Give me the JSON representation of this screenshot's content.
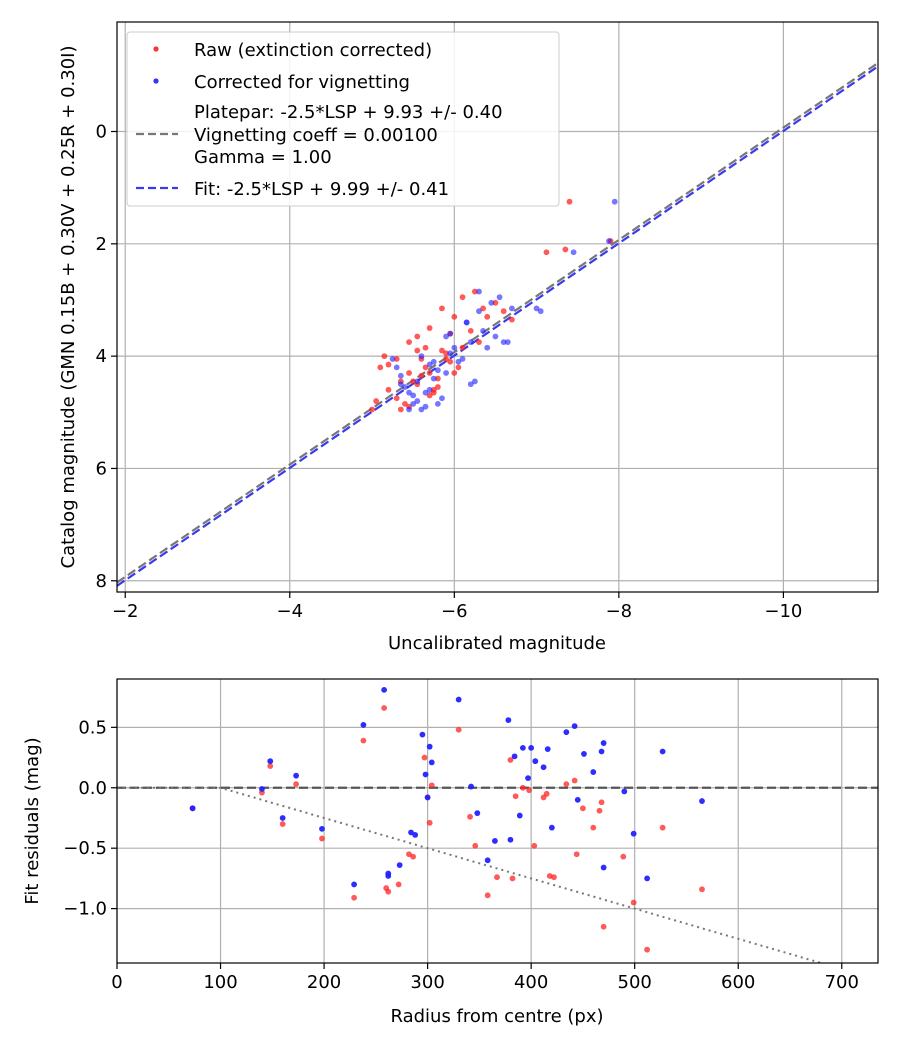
{
  "chart_data": [
    {
      "type": "scatter",
      "xlabel": "Uncalibrated magnitude",
      "ylabel": "Catalog magnitude (GMN 0.15B + 0.30V + 0.25R + 0.30I)",
      "xlim": [
        -1.9,
        -11.15
      ],
      "ylim": [
        8.2,
        -1.95
      ],
      "x_ticks": [
        -2,
        -4,
        -6,
        -8,
        -10
      ],
      "x_tick_labels": [
        "−2",
        "−4",
        "−6",
        "−8",
        "−10"
      ],
      "y_ticks": [
        0,
        2,
        4,
        6,
        8
      ],
      "y_tick_labels": [
        "0",
        "2",
        "4",
        "6",
        "8"
      ],
      "grid": true,
      "legend_position": "top-left",
      "legend": [
        {
          "kind": "scatter",
          "label": "Raw (extinction corrected)",
          "color": "#ff3333"
        },
        {
          "kind": "scatter",
          "label": "Corrected for vignetting",
          "color": "#3333ff"
        },
        {
          "kind": "line",
          "lines": [
            "Platepar: -2.5*LSP + 9.93 +/- 0.40",
            "Vignetting coeff = 0.00100",
            "Gamma = 1.00"
          ],
          "color": "#777777"
        },
        {
          "kind": "line",
          "lines": [
            "Fit: -2.5*LSP + 9.99 +/- 0.41"
          ],
          "color": "#3a3aee"
        }
      ],
      "lines": [
        {
          "name": "Platepar",
          "slope": 1,
          "intercept": 9.93,
          "color": "#777777",
          "dash": true
        },
        {
          "name": "Fit",
          "slope": 1,
          "intercept": 9.99,
          "color": "#3a3aee",
          "dash": true
        }
      ],
      "series": [
        {
          "name": "Raw (extinction corrected)",
          "color": "#ff2222",
          "x": [
            -7.4,
            -7.35,
            -7.12,
            -6.25,
            -6.1,
            -6.0,
            -5.85,
            -5.7,
            -5.55,
            -5.45,
            -5.3,
            -5.2,
            -5.1,
            -5.05,
            -5.0,
            -5.2,
            -5.35,
            -5.4,
            -5.5,
            -5.55,
            -5.6,
            -5.65,
            -5.7,
            -5.75,
            -5.8,
            -5.85,
            -5.9,
            -5.95,
            -6.0,
            -6.05,
            -6.1,
            -6.2,
            -6.3,
            -6.4,
            -6.5,
            -6.6,
            -6.7,
            -5.45,
            -5.6,
            -5.75,
            -5.9,
            -5.3,
            -5.15,
            -5.45,
            -5.7,
            -5.35,
            -5.55,
            -5.65,
            -6.35,
            -5.95,
            -5.8,
            -7.9
          ],
          "y": [
            1.25,
            2.1,
            2.15,
            2.85,
            2.95,
            3.3,
            3.15,
            3.5,
            3.65,
            3.75,
            4.05,
            4.15,
            4.2,
            4.8,
            4.95,
            4.6,
            4.45,
            4.85,
            4.45,
            4.5,
            4.05,
            3.85,
            4.3,
            4.65,
            4.55,
            3.9,
            3.95,
            4.1,
            4.3,
            4.2,
            3.85,
            3.55,
            3.75,
            3.3,
            3.05,
            3.2,
            3.35,
            4.3,
            4.35,
            4.6,
            4.05,
            4.75,
            4.0,
            4.9,
            4.7,
            4.95,
            3.9,
            4.2,
            3.15,
            3.6,
            4.4,
            1.95
          ]
        },
        {
          "name": "Corrected for vignetting",
          "color": "#2222ff",
          "x": [
            -7.95,
            -7.45,
            -7.88,
            -6.7,
            -7.0,
            -7.05,
            -6.55,
            -6.6,
            -6.45,
            -6.35,
            -6.3,
            -6.2,
            -6.15,
            -6.05,
            -5.95,
            -5.9,
            -5.85,
            -5.8,
            -5.75,
            -5.7,
            -5.65,
            -5.6,
            -5.55,
            -5.5,
            -5.45,
            -5.4,
            -5.35,
            -5.3,
            -5.25,
            -5.8,
            -5.9,
            -6.0,
            -6.1,
            -6.25,
            -6.4,
            -6.5,
            -6.65,
            -5.6,
            -5.7,
            -5.5,
            -5.45,
            -5.65,
            -5.35,
            -5.55,
            -5.75,
            -6.15,
            -6.3,
            -5.95,
            -6.2
          ],
          "y": [
            1.25,
            2.15,
            1.95,
            3.15,
            3.15,
            3.2,
            2.95,
            3.75,
            3.05,
            3.55,
            3.2,
            3.75,
            3.4,
            4.1,
            3.95,
            4.3,
            4.75,
            4.85,
            4.4,
            4.6,
            4.9,
            4.95,
            4.8,
            4.7,
            4.65,
            4.55,
            4.35,
            4.2,
            4.05,
            4.25,
            3.65,
            3.85,
            4.05,
            4.45,
            3.85,
            3.65,
            3.75,
            4.0,
            4.15,
            4.85,
            4.95,
            4.65,
            4.5,
            4.45,
            4.1,
            3.4,
            2.85,
            3.6,
            4.5
          ]
        }
      ]
    },
    {
      "type": "scatter",
      "xlabel": "Radius from centre (px)",
      "ylabel": "Fit residuals (mag)",
      "xlim": [
        0,
        735
      ],
      "ylim": [
        -1.45,
        0.9
      ],
      "x_ticks": [
        0,
        100,
        200,
        300,
        400,
        500,
        600,
        700
      ],
      "x_tick_labels": [
        "0",
        "100",
        "200",
        "300",
        "400",
        "500",
        "600",
        "700"
      ],
      "y_ticks": [
        0.5,
        0.0,
        -0.5,
        -1.0
      ],
      "y_tick_labels": [
        "0.5",
        "0.0",
        "−0.5",
        "−1.0"
      ],
      "grid": true,
      "reference_lines": [
        {
          "name": "zero",
          "y": 0,
          "color": "#555555",
          "dash": true
        },
        {
          "name": "vignetting model",
          "coefficient": 0.001,
          "start_radius": 100,
          "color": "#777777",
          "dotted": true
        }
      ],
      "series": [
        {
          "name": "Raw (extinction corrected)",
          "color": "#ff2222",
          "x": [
            73,
            140,
            148,
            160,
            173,
            198,
            229,
            238,
            258,
            260,
            262,
            272,
            282,
            286,
            297,
            300,
            302,
            304,
            330,
            341,
            346,
            358,
            367,
            380,
            382,
            385,
            392,
            398,
            403,
            412,
            415,
            418,
            422,
            434,
            442,
            444,
            450,
            460,
            466,
            468,
            470,
            489,
            499,
            512,
            527,
            565
          ],
          "y": [
            -0.17,
            -0.04,
            0.18,
            -0.3,
            0.03,
            -0.42,
            -0.91,
            0.39,
            0.66,
            -0.83,
            -0.86,
            -0.8,
            -0.55,
            -0.57,
            0.25,
            -0.08,
            -0.29,
            0.02,
            0.48,
            -0.24,
            -0.48,
            -0.89,
            -0.74,
            0.23,
            -0.75,
            -0.07,
            0.0,
            -0.02,
            -0.48,
            -0.08,
            -0.05,
            -0.73,
            -0.74,
            0.03,
            0.06,
            -0.55,
            -0.17,
            -0.33,
            -0.19,
            -0.12,
            -1.15,
            -0.57,
            -0.95,
            -1.34,
            -0.33,
            -0.84
          ]
        },
        {
          "name": "Corrected for vignetting",
          "color": "#2222ff",
          "x": [
            73,
            140,
            148,
            160,
            173,
            198,
            229,
            238,
            258,
            262,
            262,
            273,
            284,
            288,
            295,
            298,
            300,
            302,
            304,
            330,
            342,
            348,
            358,
            365,
            378,
            380,
            384,
            389,
            392,
            397,
            400,
            404,
            412,
            416,
            420,
            434,
            442,
            445,
            451,
            460,
            468,
            470,
            470,
            490,
            499,
            512,
            527,
            565
          ],
          "y": [
            -0.17,
            -0.01,
            0.22,
            -0.25,
            0.1,
            -0.34,
            -0.8,
            0.52,
            0.81,
            -0.71,
            -0.73,
            -0.64,
            -0.37,
            -0.39,
            0.44,
            0.11,
            -0.08,
            0.34,
            0.21,
            0.73,
            0.01,
            -0.21,
            -0.6,
            -0.44,
            0.56,
            -0.43,
            0.26,
            -0.23,
            0.33,
            0.08,
            0.33,
            0.22,
            0.17,
            0.32,
            -0.33,
            0.46,
            0.51,
            -0.1,
            0.28,
            0.13,
            0.3,
            0.37,
            -0.66,
            -0.03,
            -0.38,
            -0.75,
            0.3,
            -0.11
          ]
        }
      ]
    }
  ]
}
